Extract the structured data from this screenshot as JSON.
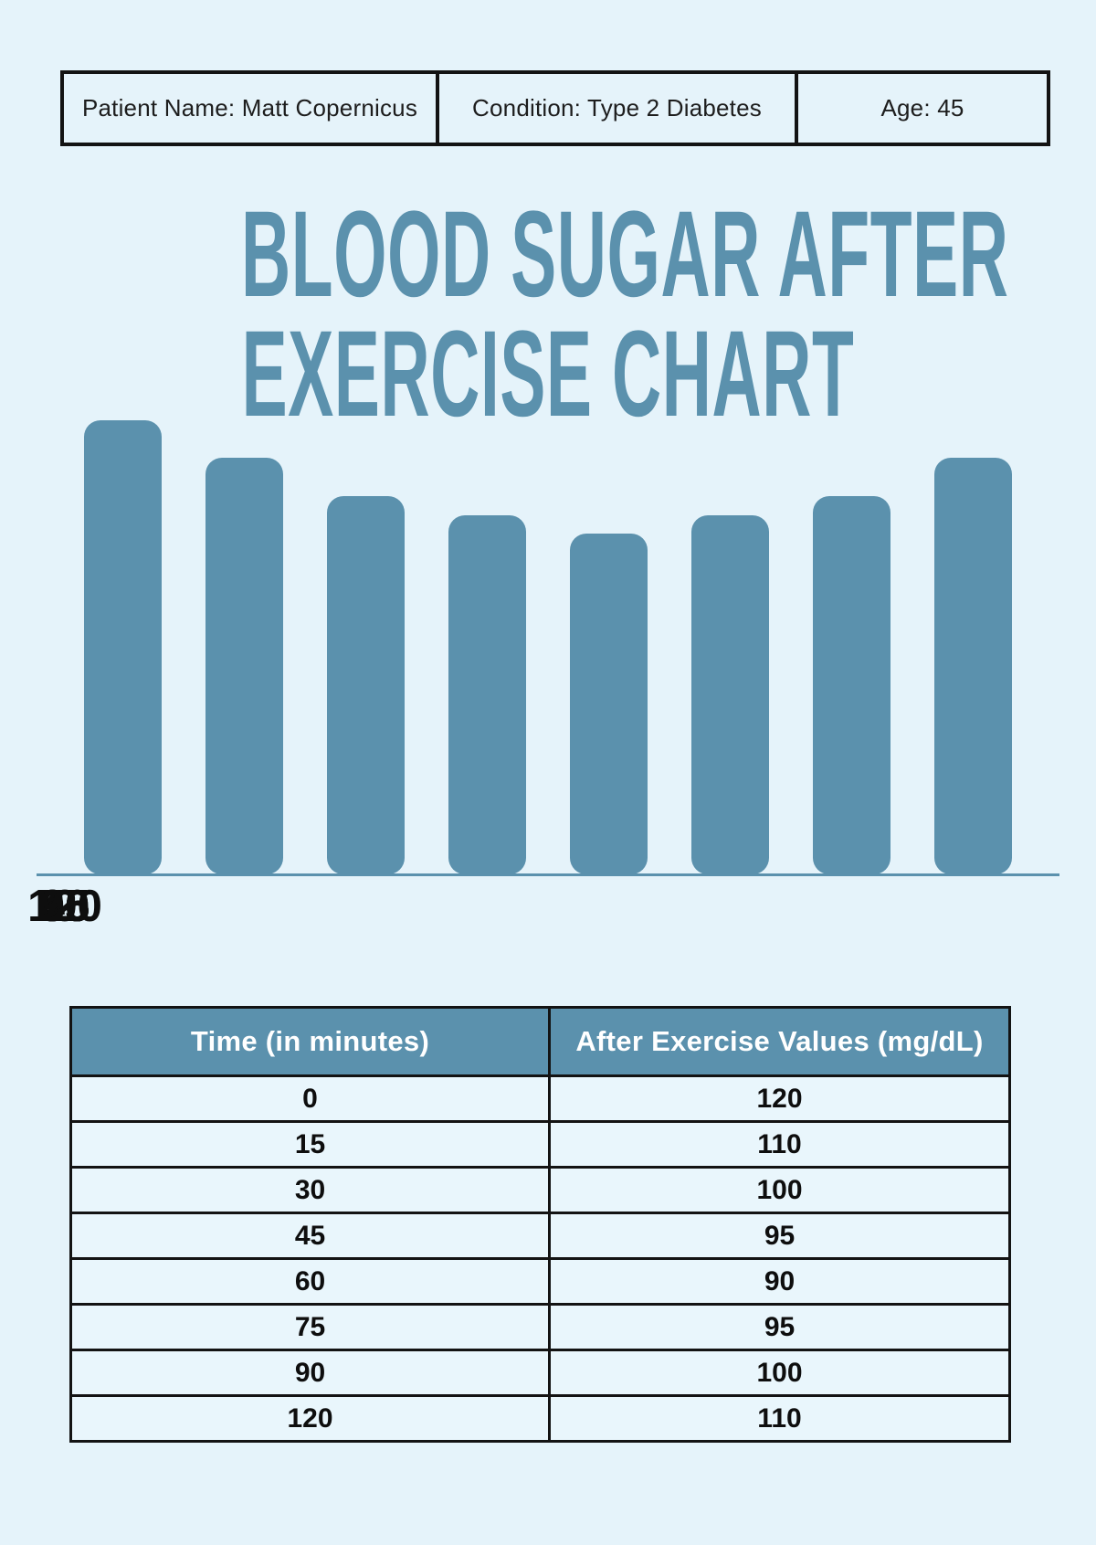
{
  "page": {
    "background_color": "#e5f3fa",
    "accent_color": "#5b91ad",
    "border_color": "#131313"
  },
  "patient_bar": {
    "name": "Patient Name: Matt Copernicus",
    "condition": "Condition: Type 2 Diabetes",
    "age": "Age: 45"
  },
  "title": {
    "line1": "BLOOD SUGAR AFTER",
    "line2": "EXERCISE CHART"
  },
  "chart_data": {
    "type": "bar",
    "title": "Blood Sugar After Exercise Chart",
    "categories": [
      "0",
      "15",
      "30",
      "45",
      "60",
      "75",
      "90",
      "120"
    ],
    "values": [
      120,
      110,
      100,
      95,
      90,
      95,
      100,
      110
    ],
    "xlabel": "Time (in minutes)",
    "ylabel": "After Exercise Values (mg/dL)",
    "ylim": [
      0,
      120
    ],
    "bar_color": "#5b91ad",
    "baseline_color": "#5b91ad",
    "grid": false,
    "legend": false,
    "value_axis_shown": false
  },
  "table": {
    "headers": [
      "Time (in minutes)",
      "After Exercise Values (mg/dL)"
    ],
    "rows": [
      {
        "time": "0",
        "value": "120"
      },
      {
        "time": "15",
        "value": "110"
      },
      {
        "time": "30",
        "value": "100"
      },
      {
        "time": "45",
        "value": "95"
      },
      {
        "time": "60",
        "value": "90"
      },
      {
        "time": "75",
        "value": "95"
      },
      {
        "time": "90",
        "value": "100"
      },
      {
        "time": "120",
        "value": "110"
      }
    ]
  }
}
